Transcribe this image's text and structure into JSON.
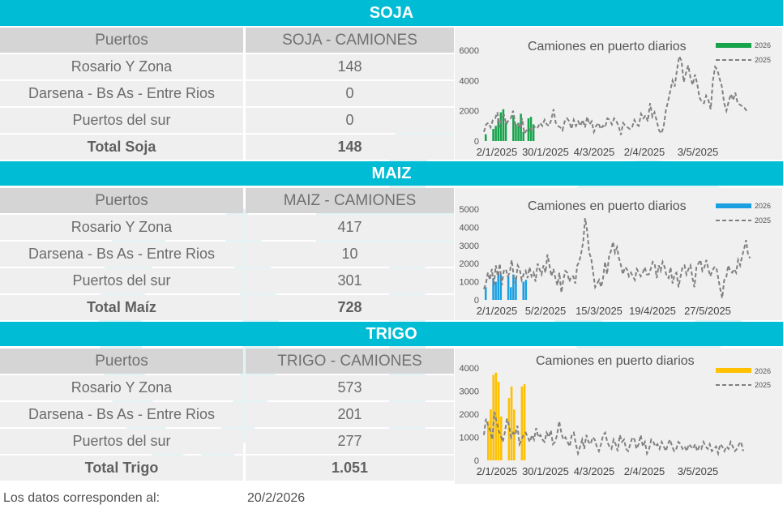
{
  "sections": [
    {
      "title": "SOJA",
      "header": [
        "Puertos",
        "SOJA - CAMIONES"
      ],
      "rows": [
        {
          "label": "Rosario Y Zona",
          "value": "148"
        },
        {
          "label": "Darsena - Bs As - Entre Rios",
          "value": "0"
        },
        {
          "label": "Puertos del sur",
          "value": "0"
        }
      ],
      "total": {
        "label": "Total Soja",
        "value": "148"
      }
    },
    {
      "title": "MAIZ",
      "header": [
        "Puertos",
        "MAIZ - CAMIONES"
      ],
      "rows": [
        {
          "label": "Rosario Y Zona",
          "value": "417"
        },
        {
          "label": "Darsena - Bs As - Entre Rios",
          "value": "10"
        },
        {
          "label": "Puertos del sur",
          "value": "301"
        }
      ],
      "total": {
        "label": "Total Maíz",
        "value": "728"
      }
    },
    {
      "title": "TRIGO",
      "header": [
        "Puertos",
        "TRIGO - CAMIONES"
      ],
      "rows": [
        {
          "label": "Rosario Y Zona",
          "value": "573"
        },
        {
          "label": "Darsena - Bs As - Entre Rios",
          "value": "201"
        },
        {
          "label": "Puertos del sur",
          "value": "277"
        }
      ],
      "total": {
        "label": "Total Trigo",
        "value": "1.051"
      }
    }
  ],
  "footer": {
    "label": "Los datos corresponden al:",
    "date": "20/2/2026"
  },
  "chart_data": [
    {
      "type": "bar+line",
      "title": "Camiones en puerto diarios",
      "legend": [
        "2026",
        "2025"
      ],
      "legend_placement": "top-right",
      "bar_color": "#16a34a",
      "line_color": "#808080",
      "ylim": [
        0,
        6000
      ],
      "yticks": [
        0,
        2000,
        4000,
        6000
      ],
      "xticks": [
        "2/1/2025",
        "30/1/2025",
        "4/3/2025",
        "2/4/2025",
        "3/5/2025"
      ],
      "series": [
        {
          "name": "2026",
          "kind": "bar",
          "values": [
            450,
            0,
            0,
            800,
            1000,
            1500,
            1900,
            2100,
            1200,
            0,
            0,
            1700,
            1100,
            1200,
            1800,
            600,
            0,
            1500,
            1600,
            1100
          ]
        },
        {
          "name": "2025",
          "kind": "line",
          "values": [
            600,
            1100,
            1200,
            900,
            1400,
            1500,
            1900,
            900,
            1600,
            1700,
            1100,
            1400,
            1500,
            2000,
            1100,
            1200,
            800,
            1500,
            500,
            700,
            600,
            900,
            800,
            1000,
            900,
            1200,
            1000,
            1400,
            1100,
            1000,
            1400,
            2100,
            1200,
            1000,
            900,
            700,
            1300,
            1500,
            1300,
            800,
            1400,
            1000,
            1300,
            1000,
            1400,
            900,
            1600,
            1100,
            1300,
            600,
            1000,
            1200,
            800,
            1000,
            900,
            1500,
            1400,
            1100,
            1500,
            1300,
            1000,
            400,
            1200,
            1000,
            900,
            800,
            900,
            1400,
            1100,
            1000,
            1800,
            1500,
            1700,
            1300,
            2500,
            1600,
            1900,
            1300,
            700,
            500,
            900,
            2000,
            2600,
            3300,
            4000,
            3600,
            4700,
            5600,
            5300,
            3900,
            4500,
            5000,
            4200,
            3700,
            4400,
            3800,
            2900,
            2600,
            2500,
            3000,
            2700,
            2100,
            4000,
            4900,
            4700,
            4100,
            3600,
            2500,
            2000,
            2600,
            3100,
            2700,
            3200,
            2500,
            2400,
            2300,
            2200,
            2000
          ]
        }
      ]
    },
    {
      "type": "bar+line",
      "title": "Camiones en puerto diarios",
      "legend": [
        "2026",
        "2025"
      ],
      "legend_placement": "top-right",
      "bar_color": "#1a9fe0",
      "line_color": "#808080",
      "ylim": [
        0,
        5000
      ],
      "yticks": [
        0,
        1000,
        2000,
        3000,
        4000,
        5000
      ],
      "xticks": [
        "2/1/2025",
        "5/2/2025",
        "15/3/2025",
        "19/4/2025",
        "27/5/2025"
      ],
      "series": [
        {
          "name": "2026",
          "kind": "bar",
          "values": [
            700,
            0,
            0,
            1200,
            1000,
            1500,
            1400,
            0,
            0,
            1300,
            700,
            1400,
            1200,
            0,
            0,
            1000,
            1100
          ]
        },
        {
          "name": "2025",
          "kind": "line",
          "values": [
            600,
            900,
            1500,
            1100,
            1700,
            800,
            1900,
            1300,
            2000,
            800,
            1600,
            1700,
            1300,
            1500,
            2200,
            1300,
            900,
            1900,
            1700,
            1100,
            1400,
            1600,
            1200,
            1800,
            1300,
            1500,
            1000,
            2000,
            1700,
            1400,
            1900,
            1500,
            2500,
            1900,
            1300,
            1700,
            1200,
            800,
            1500,
            400,
            1100,
            1600,
            1500,
            1000,
            1300,
            1300,
            900,
            1900,
            2100,
            2600,
            3200,
            4500,
            3800,
            2600,
            2300,
            1500,
            700,
            900,
            1100,
            700,
            1200,
            2100,
            1400,
            2400,
            2700,
            3200,
            2600,
            2900,
            2300,
            1900,
            1400,
            1800,
            1700,
            1300,
            1500,
            1300,
            1100,
            1700,
            1500,
            1300,
            1500,
            1800,
            1400,
            1400,
            1700,
            2100,
            2000,
            1200,
            1900,
            1600,
            2100,
            1800,
            1300,
            1200,
            1800,
            900,
            1400,
            1500,
            700,
            1300,
            1800,
            1900,
            1400,
            1700,
            1900,
            1200,
            700,
            1800,
            2000,
            2200,
            1600,
            1800,
            2200,
            1700,
            1300,
            1600,
            1800,
            1800,
            1200,
            600,
            100,
            1100,
            1200,
            1900,
            1600,
            1500,
            1700,
            1500,
            2200,
            1900,
            2400,
            2800,
            3300,
            2500,
            2300
          ]
        }
      ]
    },
    {
      "type": "bar+line",
      "title": "Camiones en puerto diarios",
      "legend": [
        "2026",
        "2025"
      ],
      "legend_placement": "top-right",
      "bar_color": "#ffc000",
      "line_color": "#808080",
      "ylim": [
        0,
        4000
      ],
      "yticks": [
        0,
        1000,
        2000,
        3000,
        4000
      ],
      "xticks": [
        "2/1/2025",
        "30/1/2025",
        "4/3/2025",
        "2/4/2025",
        "3/5/2025"
      ],
      "series": [
        {
          "name": "2026",
          "kind": "bar",
          "values": [
            1700,
            2200,
            3700,
            3800,
            3400,
            1900,
            0,
            0,
            2700,
            3200,
            2200,
            0,
            0,
            3200,
            3300
          ]
        },
        {
          "name": "2025",
          "kind": "line",
          "values": [
            1100,
            1800,
            1500,
            1300,
            900,
            2100,
            1700,
            1300,
            1100,
            800,
            1200,
            1800,
            1500,
            1000,
            1200,
            1100,
            1500,
            700,
            900,
            1100,
            1200,
            1000,
            800,
            1100,
            900,
            1400,
            1000,
            1100,
            900,
            800,
            1200,
            1000,
            1300,
            700,
            800,
            1100,
            1700,
            1200,
            900,
            1000,
            800,
            600,
            1100,
            1200,
            700,
            300,
            600,
            900,
            500,
            1100,
            800,
            700,
            1000,
            900,
            600,
            400,
            700,
            1100,
            1200,
            800,
            600,
            500,
            900,
            700,
            400,
            1100,
            800,
            900,
            500,
            400,
            700,
            1000,
            900,
            500,
            700,
            1100,
            600,
            800,
            300,
            500,
            900,
            800,
            600,
            700,
            500,
            800,
            600,
            400,
            700,
            900,
            600,
            400,
            500,
            800,
            700,
            500,
            600,
            400,
            700,
            600,
            500,
            700,
            400,
            600,
            500,
            800,
            600,
            500,
            700,
            400,
            500,
            600,
            300,
            700,
            600,
            400,
            600,
            500,
            800,
            600,
            400,
            500,
            700,
            800,
            400
          ]
        }
      ]
    }
  ]
}
